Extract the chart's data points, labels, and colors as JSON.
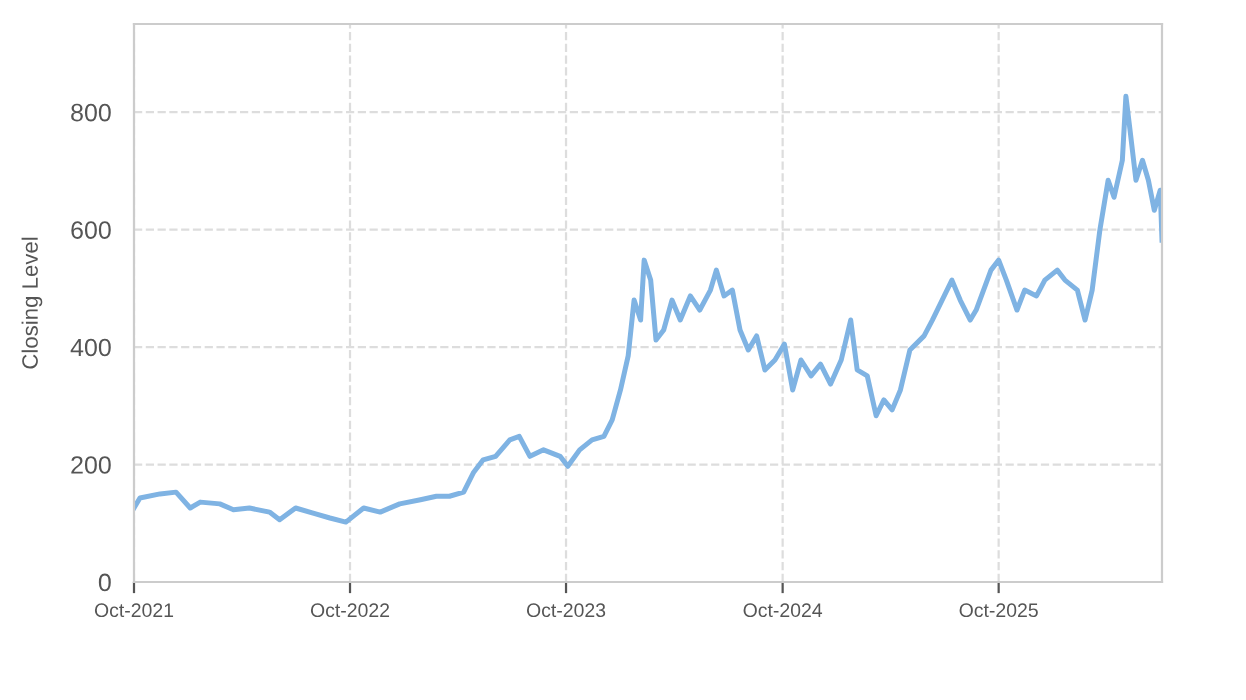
{
  "chart_data": {
    "type": "line",
    "ylabel": "Closing Level",
    "x": [
      "2021-10-01",
      "2021-10-11",
      "2021-11-14",
      "2021-12-11",
      "2022-01-04",
      "2022-01-21",
      "2022-02-23",
      "2022-03-18",
      "2022-04-14",
      "2022-05-18",
      "2022-06-04",
      "2022-07-01",
      "2022-08-04",
      "2022-08-28",
      "2022-09-24",
      "2022-10-24",
      "2022-11-21",
      "2022-12-24",
      "2023-01-28",
      "2023-02-24",
      "2023-03-18",
      "2023-04-11",
      "2023-04-28",
      "2023-05-14",
      "2023-06-04",
      "2023-06-28",
      "2023-07-14",
      "2023-08-01",
      "2023-08-24",
      "2023-09-21",
      "2023-10-04",
      "2023-10-24",
      "2023-11-14",
      "2023-12-04",
      "2023-12-18",
      "2024-01-01",
      "2024-01-14",
      "2024-01-24",
      "2024-02-04",
      "2024-02-10",
      "2024-02-21",
      "2024-03-01",
      "2024-03-14",
      "2024-03-28",
      "2024-04-11",
      "2024-04-28",
      "2024-05-14",
      "2024-06-01",
      "2024-06-11",
      "2024-06-24",
      "2024-07-08",
      "2024-07-21",
      "2024-08-04",
      "2024-08-18",
      "2024-09-01",
      "2024-09-18",
      "2024-10-04",
      "2024-10-18",
      "2024-11-01",
      "2024-11-18",
      "2024-12-04",
      "2024-12-21",
      "2025-01-08",
      "2025-01-24",
      "2025-02-04",
      "2025-02-21",
      "2025-03-08",
      "2025-03-21",
      "2025-04-04",
      "2025-04-18",
      "2025-05-04",
      "2025-05-28",
      "2025-06-11",
      "2025-07-01",
      "2025-07-14",
      "2025-07-28",
      "2025-08-14",
      "2025-08-24",
      "2025-09-18",
      "2025-10-01",
      "2025-10-14",
      "2025-11-01",
      "2025-11-14",
      "2025-12-04",
      "2025-12-18",
      "2026-01-08",
      "2026-01-21",
      "2026-02-11",
      "2026-02-24",
      "2026-03-08",
      "2026-03-21",
      "2026-04-04",
      "2026-04-14",
      "2026-04-28",
      "2026-05-04",
      "2026-05-11",
      "2026-05-21",
      "2026-06-01",
      "2026-06-11",
      "2026-06-21",
      "2026-07-01",
      "2026-07-04"
    ],
    "series": [
      {
        "color": "#7fb3e3",
        "values": [
          126,
          143,
          150,
          153,
          126,
          136,
          133,
          123,
          126,
          119,
          106,
          126,
          116,
          109,
          102,
          126,
          119,
          133,
          140,
          146,
          146,
          153,
          187,
          208,
          214,
          242,
          248,
          214,
          225,
          214,
          197,
          225,
          242,
          248,
          276,
          327,
          385,
          480,
          446,
          548,
          514,
          412,
          429,
          480,
          446,
          487,
          463,
          497,
          531,
          487,
          497,
          429,
          395,
          419,
          361,
          378,
          405,
          327,
          378,
          351,
          371,
          337,
          378,
          446,
          361,
          351,
          283,
          310,
          293,
          327,
          395,
          419,
          446,
          487,
          514,
          480,
          446,
          463,
          531,
          548,
          514,
          463,
          497,
          487,
          514,
          531,
          514,
          497,
          446,
          497,
          599,
          684,
          655,
          718,
          827,
          769,
          684,
          718,
          684,
          633,
          667,
          582
        ]
      }
    ],
    "xlim": [
      "2021-10-01",
      "2026-07-04"
    ],
    "xticks": [
      {
        "value": "2021-10-01",
        "label": "Oct-2021"
      },
      {
        "value": "2022-10-01",
        "label": "Oct-2022"
      },
      {
        "value": "2023-10-01",
        "label": "Oct-2023"
      },
      {
        "value": "2024-10-01",
        "label": "Oct-2024"
      },
      {
        "value": "2025-10-01",
        "label": "Oct-2025"
      }
    ],
    "ylim": [
      0,
      950
    ],
    "yticks": [
      0,
      200,
      400,
      600,
      800
    ],
    "grid": true,
    "legend": false,
    "marker": "none",
    "line_style": "solid"
  }
}
